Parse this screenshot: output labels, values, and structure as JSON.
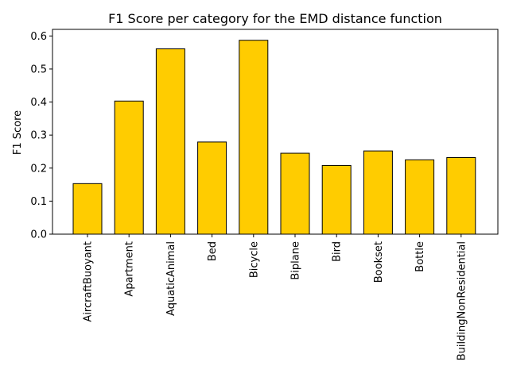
{
  "chart_data": {
    "type": "bar",
    "title": "F1 Score per category for the EMD distance function",
    "xlabel": "",
    "ylabel": "F1 Score",
    "ylim": [
      0,
      0.62
    ],
    "yticks": [
      "0.0",
      "0.1",
      "0.2",
      "0.3",
      "0.4",
      "0.5",
      "0.6"
    ],
    "grid": false,
    "categories": [
      "AircraftBuoyant",
      "Apartment",
      "AquaticAnimal",
      "Bed",
      "Bicycle",
      "Biplane",
      "Bird",
      "Bookset",
      "Bottle",
      "BuildingNonResidential"
    ],
    "values": [
      0.153,
      0.403,
      0.561,
      0.279,
      0.587,
      0.245,
      0.208,
      0.252,
      0.225,
      0.232
    ],
    "bar_color": "#ffcc00",
    "edge_color": "#000000"
  }
}
